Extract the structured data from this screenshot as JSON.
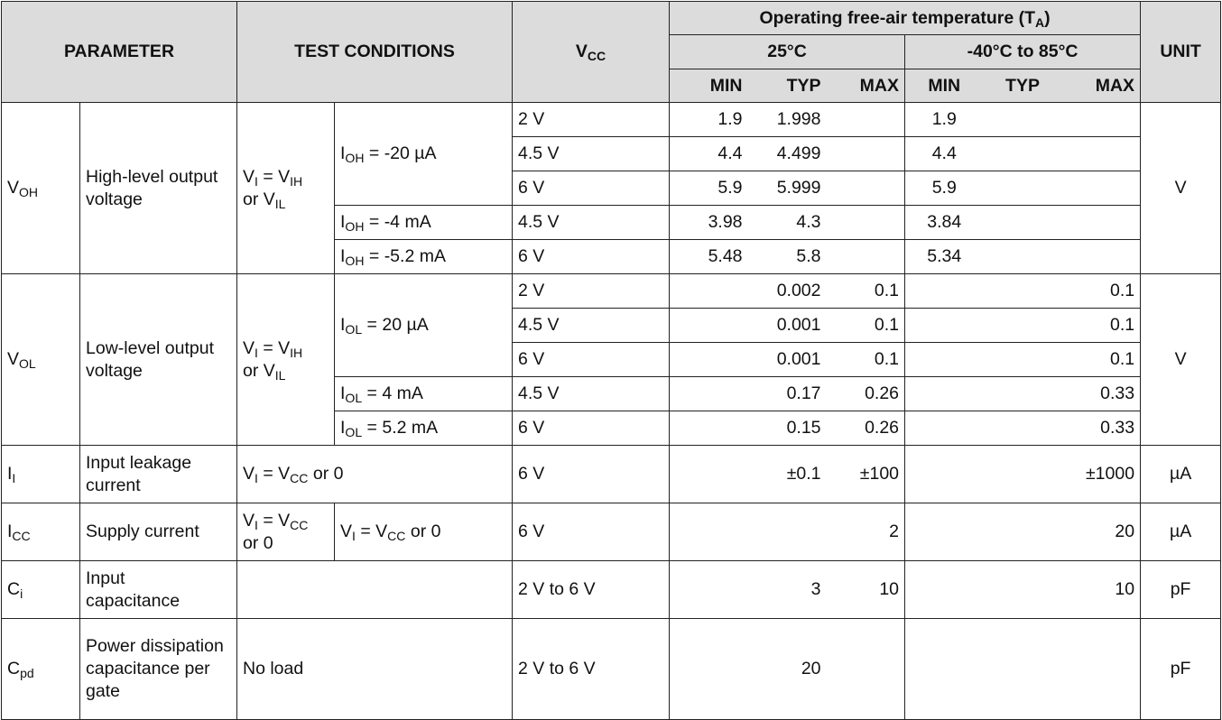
{
  "header": {
    "parameter": "PARAMETER",
    "test_conditions": "TEST CONDITIONS",
    "vcc_main": "V",
    "vcc_sub": "CC",
    "temp_title": "Operating free-air temperature (T",
    "temp_sub": "A",
    "temp_close": ")",
    "t25": "25°C",
    "trange": "-40°C to 85°C",
    "unit": "UNIT",
    "min": "MIN",
    "typ": "TYP",
    "max": "MAX"
  },
  "voh": {
    "sym": "V",
    "sym_sub": "OH",
    "desc": "High-level output voltage",
    "cond_a": "V",
    "cond_a_sub": "I",
    "cond_b": " = V",
    "cond_b_sub": "IH",
    "cond_c": "or V",
    "cond_c_sub": "IL",
    "unit": "V",
    "rows": [
      {
        "cur": "I",
        "cur_sub": "OH",
        "cur_val": " = -20 µA",
        "vcc": "2 V",
        "min25": "1.9",
        "typ25": "1.998",
        "max25": "",
        "minR": "1.9",
        "typR": "",
        "maxR": ""
      },
      {
        "vcc": "4.5 V",
        "min25": "4.4",
        "typ25": "4.499",
        "max25": "",
        "minR": "4.4",
        "typR": "",
        "maxR": ""
      },
      {
        "vcc": "6 V",
        "min25": "5.9",
        "typ25": "5.999",
        "max25": "",
        "minR": "5.9",
        "typR": "",
        "maxR": ""
      },
      {
        "cur": "I",
        "cur_sub": "OH",
        "cur_val": " = -4 mA",
        "vcc": "4.5 V",
        "min25": "3.98",
        "typ25": "4.3",
        "max25": "",
        "minR": "3.84",
        "typR": "",
        "maxR": ""
      },
      {
        "cur": "I",
        "cur_sub": "OH",
        "cur_val": " = -5.2 mA",
        "vcc": "6 V",
        "min25": "5.48",
        "typ25": "5.8",
        "max25": "",
        "minR": "5.34",
        "typR": "",
        "maxR": ""
      }
    ]
  },
  "vol": {
    "sym": "V",
    "sym_sub": "OL",
    "desc": "Low-level output voltage",
    "cond_a": "V",
    "cond_a_sub": "I",
    "cond_b": " = V",
    "cond_b_sub": "IH",
    "cond_c": "or V",
    "cond_c_sub": "IL",
    "unit": "V",
    "rows": [
      {
        "cur": "I",
        "cur_sub": "OL",
        "cur_val": " = 20 µA",
        "vcc": "2 V",
        "min25": "",
        "typ25": "0.002",
        "max25": "0.1",
        "minR": "",
        "typR": "",
        "maxR": "0.1"
      },
      {
        "vcc": "4.5 V",
        "min25": "",
        "typ25": "0.001",
        "max25": "0.1",
        "minR": "",
        "typR": "",
        "maxR": "0.1"
      },
      {
        "vcc": "6 V",
        "min25": "",
        "typ25": "0.001",
        "max25": "0.1",
        "minR": "",
        "typR": "",
        "maxR": "0.1"
      },
      {
        "cur": "I",
        "cur_sub": "OL",
        "cur_val": " = 4 mA",
        "vcc": "4.5 V",
        "min25": "",
        "typ25": "0.17",
        "max25": "0.26",
        "minR": "",
        "typR": "",
        "maxR": "0.33"
      },
      {
        "cur": "I",
        "cur_sub": "OL",
        "cur_val": " = 5.2 mA",
        "vcc": "6 V",
        "min25": "",
        "typ25": "0.15",
        "max25": "0.26",
        "minR": "",
        "typR": "",
        "maxR": "0.33"
      }
    ]
  },
  "ii": {
    "sym": "I",
    "sym_sub": "I",
    "desc": "Input leakage current",
    "cond_a": "V",
    "cond_a_sub": "I",
    "cond_b": " = V",
    "cond_b_sub": "CC",
    "cond_c": " or 0",
    "vcc": "6 V",
    "typ25": "±0.1",
    "max25": "±100",
    "maxR": "±1000",
    "unit": "µA"
  },
  "icc": {
    "sym": "I",
    "sym_sub": "CC",
    "desc": "Supply current",
    "c1_a": "V",
    "c1_a_sub": "I",
    "c1_b": " = V",
    "c1_b_sub": "CC",
    "c1_c": "or 0",
    "c2_a": "V",
    "c2_a_sub": "I",
    "c2_b": " = V",
    "c2_b_sub": "CC",
    "c2_c": " or 0",
    "vcc": "6 V",
    "max25": "2",
    "maxR": "20",
    "unit": "µA"
  },
  "ci": {
    "sym": "C",
    "sym_sub": "i",
    "desc": "Input capacitance",
    "vcc": "2 V to 6 V",
    "typ25": "3",
    "max25": "10",
    "maxR": "10",
    "unit": "pF"
  },
  "cpd": {
    "sym": "C",
    "sym_sub": "pd",
    "desc": "Power dissipation capacitance per gate",
    "cond": "No load",
    "vcc": "2 V to 6 V",
    "typ25": "20",
    "unit": "pF"
  }
}
